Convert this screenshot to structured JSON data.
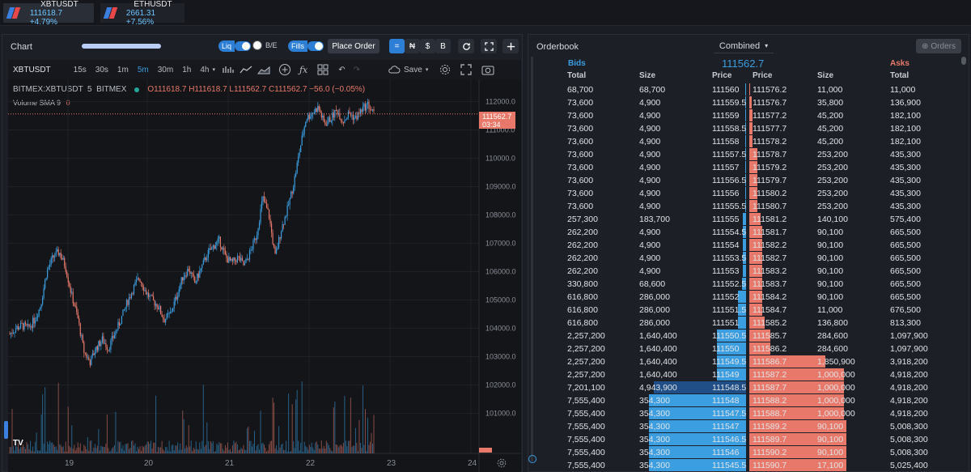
{
  "tickers": [
    {
      "symbol": "XBTUSDT",
      "price": "111618.7 +4.79%"
    },
    {
      "symbol": "ETHUSDT",
      "price": "2661.31 +7.56%"
    }
  ],
  "chart_panel": {
    "title": "Chart",
    "liq_label": "Liq",
    "be_label": "B/E",
    "fills_label": "Fills",
    "place_order_label": "Place Order",
    "view_buttons": [
      "=",
      "₦",
      "$",
      "B"
    ],
    "symbol": "XBTUSDT",
    "timeframes": [
      "15s",
      "30s",
      "1m",
      "5m",
      "30m",
      "1h",
      "4h"
    ],
    "active_timeframe": "5m",
    "save_label": "Save",
    "legend_title": "BITMEX:XBTUSDT  5  BITMEX",
    "ohlc": "O111618.7 H111618.7 L111562.7 C111562.7 −56.0 (−0.05%)",
    "volume_label": "Volume SMA 9",
    "volume_value": "0",
    "current_price": "111562.7",
    "countdown": "03:34"
  },
  "chart_data": {
    "type": "candlestick",
    "ylim": [
      100500,
      112500
    ],
    "yticks": [
      "112000.0",
      "111000.0",
      "110000.0",
      "109000.0",
      "108000.0",
      "107000.0",
      "106000.0",
      "105000.0",
      "104000.0",
      "103000.0",
      "102000.0",
      "101000.0"
    ],
    "xticks": [
      "19",
      "20",
      "21",
      "22",
      "23",
      "24"
    ],
    "close_path": [
      103800,
      104000,
      104100,
      104000,
      104300,
      104800,
      106000,
      106500,
      106700,
      106200,
      105200,
      104400,
      103200,
      102800,
      103300,
      103600,
      103300,
      103800,
      104300,
      104900,
      105400,
      105800,
      105300,
      105000,
      104800,
      104300,
      104500,
      105100,
      105800,
      106100,
      105600,
      106100,
      106600,
      106900,
      107100,
      106500,
      106300,
      106500,
      106200,
      106700,
      107300,
      108600,
      108000,
      106500,
      107500,
      108200,
      109100,
      110300,
      111400,
      111600,
      111800,
      111200,
      111400,
      111700,
      111300,
      111600,
      111400,
      111700,
      111900,
      111560
    ],
    "colors": {
      "up": "#3b9ee0",
      "down": "#e8796a"
    }
  },
  "orderbook": {
    "title": "Orderbook",
    "mode": "Combined",
    "orders_label": "Orders",
    "bids_label": "Bids",
    "asks_label": "Asks",
    "mid_price": "111562.7",
    "columns": [
      "Total",
      "Size",
      "Price",
      "Price",
      "Size",
      "Total"
    ],
    "rows": [
      [
        "68,700",
        "68,700",
        "111560",
        "111576.2",
        "11,000",
        "11,000"
      ],
      [
        "73,600",
        "4,900",
        "111559.5",
        "111576.7",
        "35,800",
        "136,900"
      ],
      [
        "73,600",
        "4,900",
        "111559",
        "111577.2",
        "45,200",
        "182,100"
      ],
      [
        "73,600",
        "4,900",
        "111558.5",
        "111577.7",
        "45,200",
        "182,100"
      ],
      [
        "73,600",
        "4,900",
        "111558",
        "111578.2",
        "45,200",
        "182,100"
      ],
      [
        "73,600",
        "4,900",
        "111557.5",
        "111578.7",
        "253,200",
        "435,300"
      ],
      [
        "73,600",
        "4,900",
        "111557",
        "111579.2",
        "253,200",
        "435,300"
      ],
      [
        "73,600",
        "4,900",
        "111556.5",
        "111579.7",
        "253,200",
        "435,300"
      ],
      [
        "73,600",
        "4,900",
        "111556",
        "111580.2",
        "253,200",
        "435,300"
      ],
      [
        "73,600",
        "4,900",
        "111555.5",
        "111580.7",
        "253,200",
        "435,300"
      ],
      [
        "257,300",
        "183,700",
        "111555",
        "111581.2",
        "140,100",
        "575,400"
      ],
      [
        "262,200",
        "4,900",
        "111554.5",
        "111581.7",
        "90,100",
        "665,500"
      ],
      [
        "262,200",
        "4,900",
        "111554",
        "111582.2",
        "90,100",
        "665,500"
      ],
      [
        "262,200",
        "4,900",
        "111553.5",
        "111582.7",
        "90,100",
        "665,500"
      ],
      [
        "262,200",
        "4,900",
        "111553",
        "111583.2",
        "90,100",
        "665,500"
      ],
      [
        "330,800",
        "68,600",
        "111552.5",
        "111583.7",
        "90,100",
        "665,500"
      ],
      [
        "616,800",
        "286,000",
        "111552",
        "111584.2",
        "90,100",
        "665,500"
      ],
      [
        "616,800",
        "286,000",
        "111551.5",
        "111584.7",
        "11,000",
        "676,500"
      ],
      [
        "616,800",
        "286,000",
        "111551",
        "111585.2",
        "136,800",
        "813,300"
      ],
      [
        "2,257,200",
        "1,640,400",
        "111550.5",
        "111585.7",
        "284,600",
        "1,097,900"
      ],
      [
        "2,257,200",
        "1,640,400",
        "111550",
        "111586.2",
        "284,600",
        "1,097,900"
      ],
      [
        "2,257,200",
        "1,640,400",
        "111549.5",
        "111586.7",
        "1,850,900",
        "3,918,200"
      ],
      [
        "2,257,200",
        "1,640,400",
        "111549",
        "111587.2",
        "1,000,000",
        "4,918,200"
      ],
      [
        "7,201,100",
        "4,943,900",
        "111548.5",
        "111587.7",
        "1,000,000",
        "4,918,200"
      ],
      [
        "7,555,400",
        "354,300",
        "111548",
        "111588.2",
        "1,000,000",
        "4,918,200"
      ],
      [
        "7,555,400",
        "354,300",
        "111547.5",
        "111588.7",
        "1,000,000",
        "4,918,200"
      ],
      [
        "7,555,400",
        "354,300",
        "111547",
        "111589.2",
        "90,100",
        "5,008,300"
      ],
      [
        "7,555,400",
        "354,300",
        "111546.5",
        "111589.7",
        "90,100",
        "5,008,300"
      ],
      [
        "7,555,400",
        "354,300",
        "111546",
        "111590.2",
        "90,100",
        "5,008,300"
      ],
      [
        "7,555,400",
        "354,300",
        "111545.5",
        "111590.7",
        "17,100",
        "5,025,400"
      ]
    ]
  }
}
